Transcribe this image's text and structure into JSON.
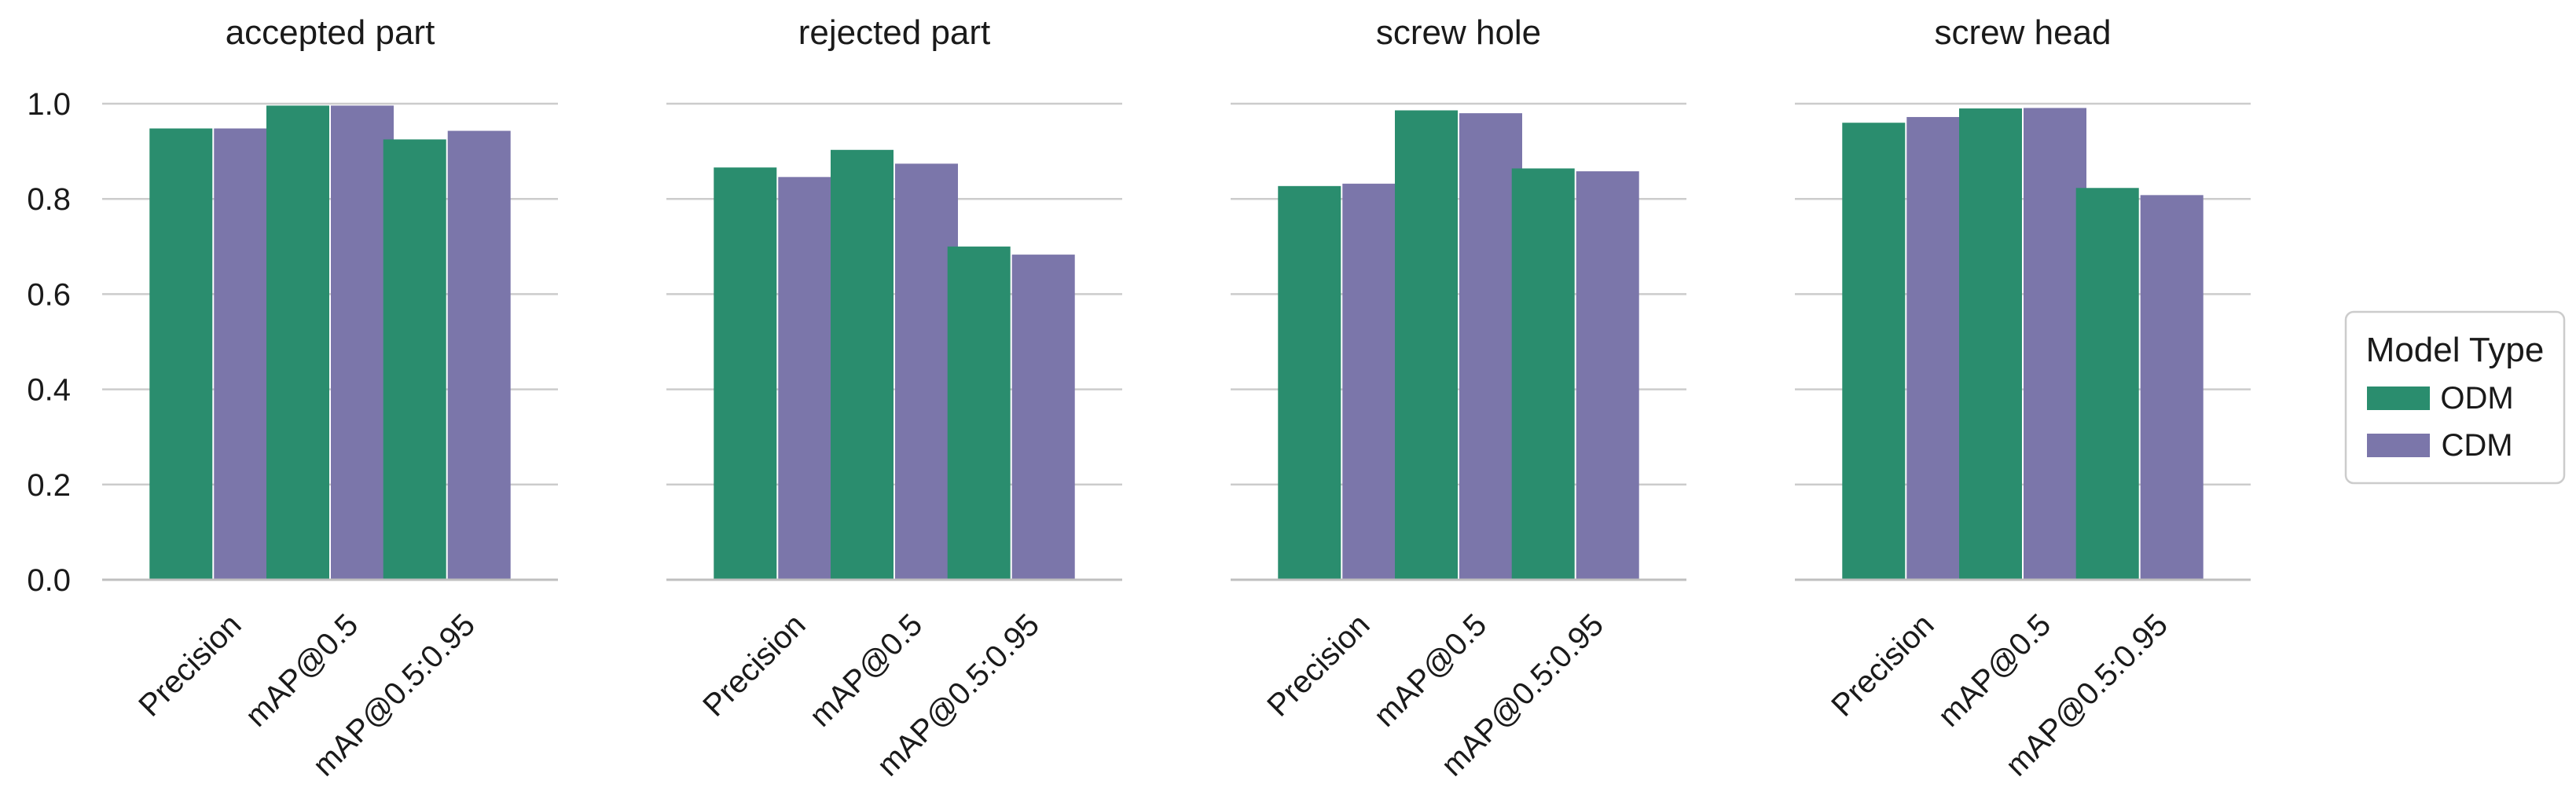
{
  "chart_data": [
    {
      "type": "bar",
      "title": "accepted part",
      "categories": [
        "Precision",
        "mAP@0.5",
        "mAP@0.5:0.95"
      ],
      "series": [
        {
          "name": "ODM",
          "values": [
            0.948,
            0.996,
            0.925
          ]
        },
        {
          "name": "CDM",
          "values": [
            0.948,
            0.996,
            0.943
          ]
        }
      ],
      "ylim": [
        0,
        1.0
      ],
      "yticks": [
        "0.0",
        "0.2",
        "0.4",
        "0.6",
        "0.8",
        "1.0"
      ]
    },
    {
      "type": "bar",
      "title": "rejected part",
      "categories": [
        "Precision",
        "mAP@0.5",
        "mAP@0.5:0.95"
      ],
      "series": [
        {
          "name": "ODM",
          "values": [
            0.866,
            0.903,
            0.7
          ]
        },
        {
          "name": "CDM",
          "values": [
            0.846,
            0.874,
            0.683
          ]
        }
      ],
      "ylim": [
        0,
        1.0
      ]
    },
    {
      "type": "bar",
      "title": "screw hole",
      "categories": [
        "Precision",
        "mAP@0.5",
        "mAP@0.5:0.95"
      ],
      "series": [
        {
          "name": "ODM",
          "values": [
            0.827,
            0.986,
            0.864
          ]
        },
        {
          "name": "CDM",
          "values": [
            0.832,
            0.98,
            0.858
          ]
        }
      ],
      "ylim": [
        0,
        1.0
      ]
    },
    {
      "type": "bar",
      "title": "screw head",
      "categories": [
        "Precision",
        "mAP@0.5",
        "mAP@0.5:0.95"
      ],
      "series": [
        {
          "name": "ODM",
          "values": [
            0.96,
            0.99,
            0.823
          ]
        },
        {
          "name": "CDM",
          "values": [
            0.972,
            0.991,
            0.808
          ]
        }
      ],
      "ylim": [
        0,
        1.0
      ]
    }
  ],
  "legend": {
    "title": "Model Type",
    "placement": "right",
    "items": [
      {
        "label": "ODM",
        "color": "#2a8d6e"
      },
      {
        "label": "CDM",
        "color": "#7b76aa"
      }
    ]
  },
  "grid": true,
  "colors": {
    "ODM": "#2a8d6e",
    "CDM": "#7b76aa",
    "grid": "#cccccc",
    "axis": "#bfbfbf"
  }
}
